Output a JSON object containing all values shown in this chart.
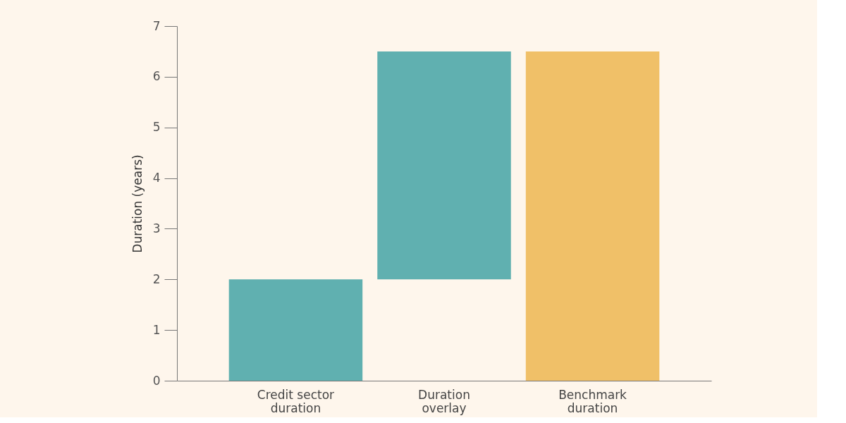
{
  "chart_data": {
    "type": "bar",
    "ylabel": "Duration (years)",
    "categories": [
      "Credit sector duration",
      "Duration overlay",
      "Benchmark duration"
    ],
    "values": [
      2,
      4.5,
      6.5
    ],
    "base": [
      0,
      2,
      0
    ],
    "colors": [
      "#60b0b0",
      "#60b0b0",
      "#f0c068"
    ],
    "ylim": [
      0,
      7
    ],
    "yticks": [
      0,
      1,
      2,
      3,
      4,
      5,
      6,
      7
    ],
    "grid": false
  }
}
